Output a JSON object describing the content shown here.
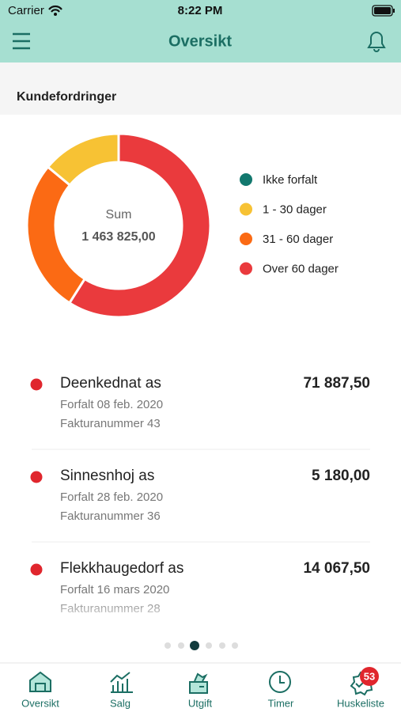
{
  "status_bar": {
    "carrier": "Carrier",
    "time": "8:22 PM"
  },
  "header": {
    "title": "Oversikt"
  },
  "section_title": "Kundefordringer",
  "chart_data": {
    "type": "donut",
    "center_label": "Sum",
    "center_value": "1 463 825,00",
    "categories": [
      "Ikke forfalt",
      "1 - 30 dager",
      "31 - 60 dager",
      "Over 60 dager"
    ],
    "values": [
      0,
      14,
      27,
      59
    ],
    "colors": [
      "#12786e",
      "#f7c234",
      "#fb6a14",
      "#ea3a3d"
    ]
  },
  "invoices": [
    {
      "name": "Deenkednat as",
      "due": "Forfalt 08 feb. 2020",
      "number": "Fakturanummer 43",
      "amount": "71 887,50"
    },
    {
      "name": "Sinnesnhoj as",
      "due": "Forfalt 28 feb. 2020",
      "number": "Fakturanummer 36",
      "amount": "5 180,00"
    },
    {
      "name": "Flekkhaugedorf as",
      "due": "Forfalt 16 mars 2020",
      "number": "Fakturanummer 28",
      "amount": "14 067,50"
    }
  ],
  "tab_bar": {
    "tabs": [
      "Oversikt",
      "Salg",
      "Utgift",
      "Timer",
      "Huskeliste"
    ],
    "badge": "53"
  }
}
